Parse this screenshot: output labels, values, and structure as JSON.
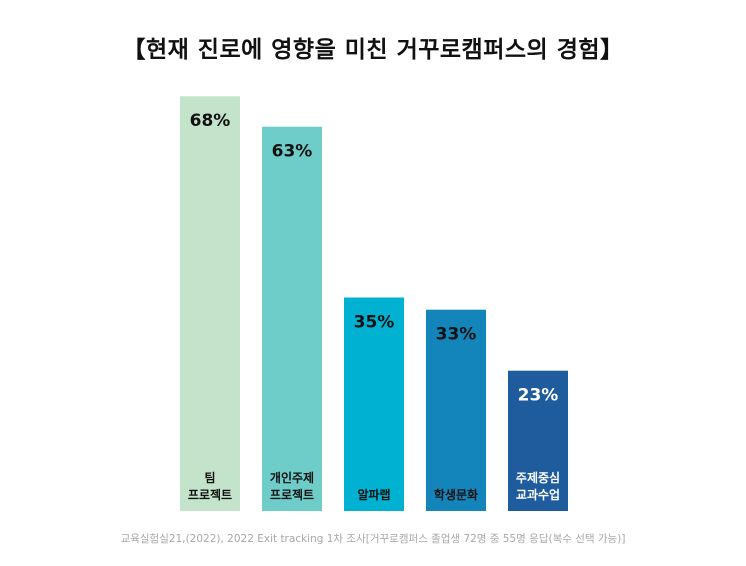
{
  "title": "【현재 진로에 영향을 미친 거꾸로캠퍼스의 경험】",
  "source": "교육실험실21,(2022), 2022 Exit tracking 1차 조사[거꾸로캠퍼스 졸업생 72명 중 55명 응답(복수 선택 가능)]",
  "chart_data": {
    "type": "bar",
    "title": "【현재 진로에 영향을 미친 거꾸로캠퍼스의 경험】",
    "categories": [
      [
        "팀",
        "프로젝트"
      ],
      [
        "개인주제",
        "프로젝트"
      ],
      [
        "알파랩"
      ],
      [
        "학생문화"
      ],
      [
        "주제중심",
        "교과수업"
      ]
    ],
    "values": [
      68,
      63,
      35,
      33,
      23
    ],
    "value_labels": [
      "68%",
      "63%",
      "35%",
      "33%",
      "23%"
    ],
    "colors": [
      "#c3e4cb",
      "#6ecdc9",
      "#00b1d2",
      "#1385bb",
      "#1f5c9e"
    ],
    "label_colors": [
      "#111111",
      "#111111",
      "#111111",
      "#111111",
      "#ffffff"
    ],
    "ylim": [
      0,
      100
    ],
    "grid": false,
    "legend": "none"
  }
}
